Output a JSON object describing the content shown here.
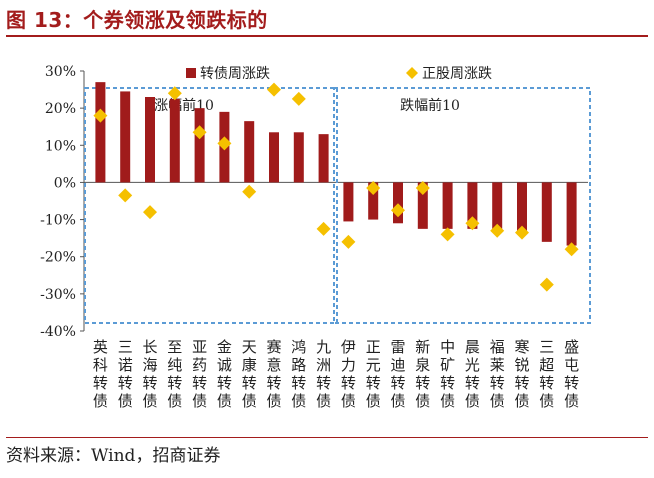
{
  "header": {
    "title": "图 13：个券领涨及领跌标的"
  },
  "footer": {
    "source": "资料来源：Wind，招商证券"
  },
  "colors": {
    "bar": "#a01b1b",
    "marker": "#f5c000",
    "frame": "#5b9bd5",
    "brand": "#a31c1c"
  },
  "chart_data": {
    "type": "bar",
    "title": "",
    "xlabel": "",
    "ylabel": "",
    "ylim": [
      -40,
      30
    ],
    "yticks": [
      -40,
      -30,
      -20,
      -10,
      0,
      10,
      20,
      30
    ],
    "ytick_labels": [
      "-40%",
      "-30%",
      "-20%",
      "-10%",
      "0%",
      "10%",
      "20%",
      "30%"
    ],
    "legend_position": "top",
    "categories": [
      "英科转债",
      "三诺转债",
      "长海转债",
      "至纯转债",
      "亚药转债",
      "金诚转债",
      "天康转债",
      "赛意转债",
      "鸿路转债",
      "九洲转债",
      "伊力转债",
      "正元转债",
      "雷迪转债",
      "新泉转债",
      "中矿转债",
      "晨光转债",
      "福莱转债",
      "寒锐转债",
      "三超转债",
      "盛屯转债"
    ],
    "series": [
      {
        "name": "转债周涨跌",
        "kind": "bar",
        "values": [
          27,
          24.5,
          23,
          22.5,
          20,
          19,
          16.5,
          13.5,
          13.5,
          13,
          -10.5,
          -10,
          -11,
          -12.5,
          -12.5,
          -12.5,
          -12.5,
          -13,
          -16,
          -17
        ]
      },
      {
        "name": "正股周涨跌",
        "kind": "marker",
        "values": [
          18,
          -3.5,
          -8,
          24,
          13.5,
          10.5,
          -2.5,
          25,
          22.5,
          -12.5,
          -16,
          -1.5,
          -7.5,
          -1.5,
          -14,
          -11,
          -13,
          -13.5,
          -27.5,
          -18
        ]
      }
    ],
    "groups": [
      {
        "label": "涨幅前10",
        "from": 0,
        "to": 9
      },
      {
        "label": "跌幅前10",
        "from": 10,
        "to": 19
      }
    ]
  }
}
